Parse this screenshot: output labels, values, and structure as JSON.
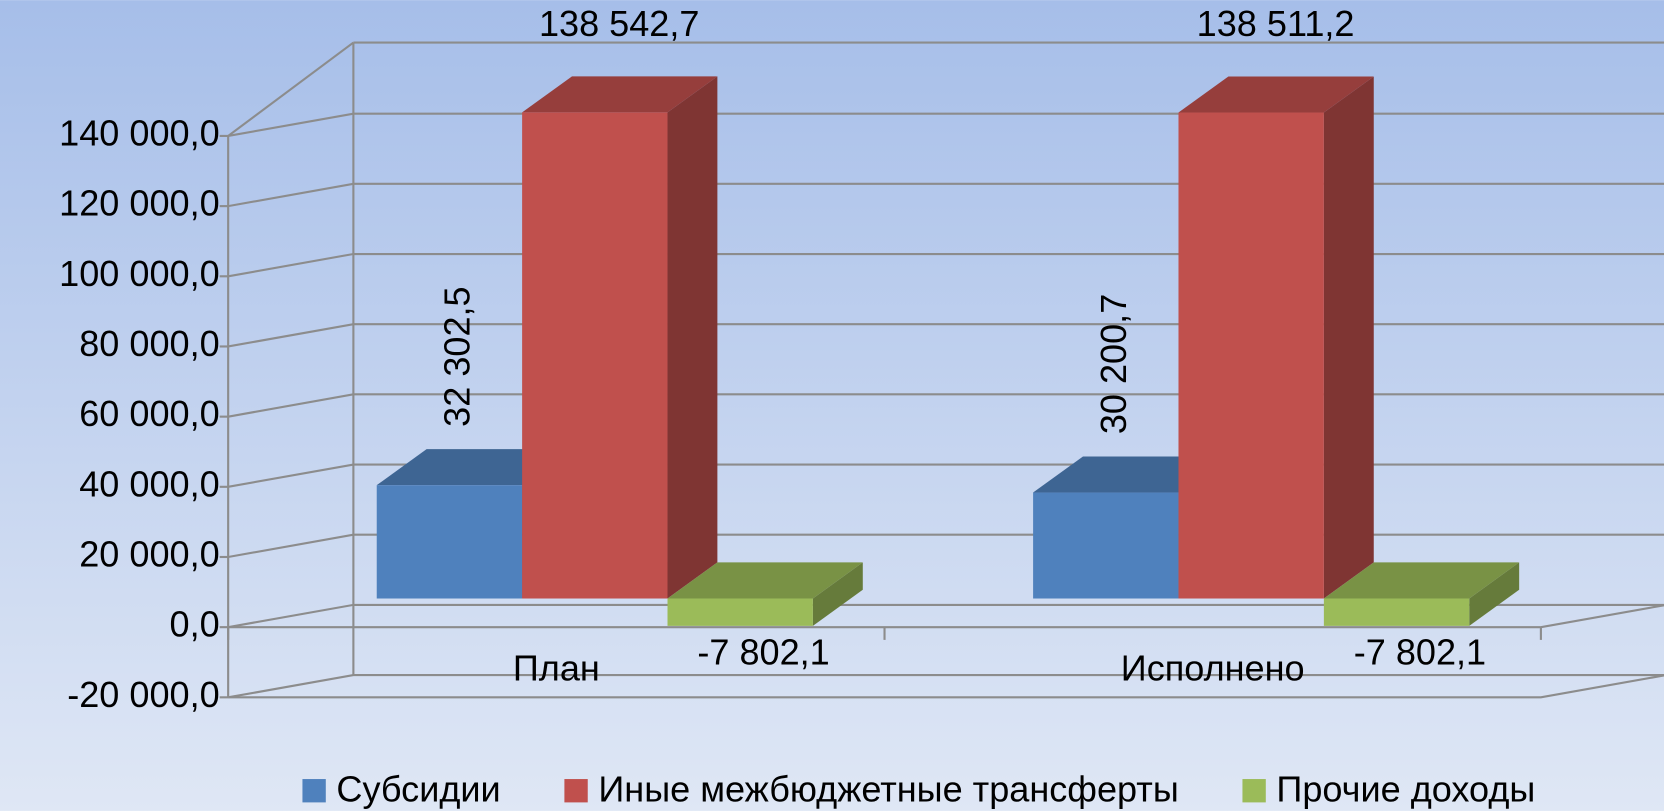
{
  "chart_data": {
    "type": "bar3d",
    "categories": [
      "План",
      "Исполнено"
    ],
    "series": [
      {
        "name": "Субсидии",
        "color": "#4f81bd",
        "values": [
          32302.5,
          30200.7
        ],
        "value_labels": [
          "32 302,5",
          "30 200,7"
        ]
      },
      {
        "name": "Иные межбюджетные трансферты",
        "color": "#c0504d",
        "values": [
          138542.7,
          138511.2
        ],
        "value_labels": [
          "138 542,7",
          "138 511,2"
        ]
      },
      {
        "name": "Прочие доходы",
        "color": "#9bbb59",
        "values": [
          -7802.1,
          -7802.1
        ],
        "value_labels": [
          "-7 802,1",
          "-7 802,1"
        ]
      }
    ],
    "ylim": [
      -20000,
      140000
    ],
    "yticks": [
      {
        "value": -20000,
        "label": "-20 000,0"
      },
      {
        "value": 0,
        "label": "0,0"
      },
      {
        "value": 20000,
        "label": "20 000,0"
      },
      {
        "value": 40000,
        "label": "40 000,0"
      },
      {
        "value": 60000,
        "label": "60 000,0"
      },
      {
        "value": 80000,
        "label": "80 000,0"
      },
      {
        "value": 100000,
        "label": "100 000,0"
      },
      {
        "value": 120000,
        "label": "120 000,0"
      },
      {
        "value": 140000,
        "label": "140 000,0"
      }
    ],
    "grid": true,
    "legend": "bottom"
  }
}
